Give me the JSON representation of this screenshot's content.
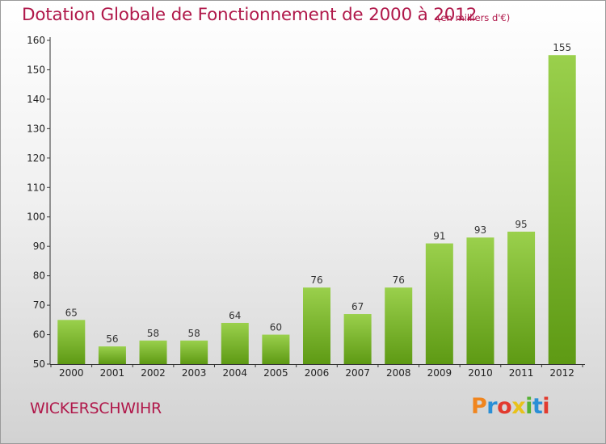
{
  "header": {
    "title": "Dotation Globale de Fonctionnement de 2000 à 2012",
    "unit": "(en milliers d'€)"
  },
  "footer": {
    "commune": "WICKERSCHWIHR",
    "logo": {
      "letters": [
        "P",
        "r",
        "o",
        "x",
        "i",
        "t",
        "i"
      ],
      "colors": [
        "#f0851e",
        "#2a8fd6",
        "#e23a2e",
        "#e8c21b",
        "#55b233",
        "#2a8fd6",
        "#e23a2e"
      ]
    }
  },
  "colors": {
    "title": "#b0184a",
    "bar_light": "#9ad04c",
    "bar_dark": "#5e9a14",
    "axis": "#333333"
  },
  "chart_data": {
    "type": "bar",
    "categories": [
      "2000",
      "2001",
      "2002",
      "2003",
      "2004",
      "2005",
      "2006",
      "2007",
      "2008",
      "2009",
      "2010",
      "2011",
      "2012"
    ],
    "values": [
      65,
      56,
      58,
      58,
      64,
      60,
      76,
      67,
      76,
      91,
      93,
      95,
      155
    ],
    "ylim": [
      50,
      160
    ],
    "yticks": [
      50,
      60,
      70,
      80,
      90,
      100,
      110,
      120,
      130,
      140,
      150,
      160
    ],
    "grid": false,
    "xlabel": "",
    "ylabel": ""
  }
}
